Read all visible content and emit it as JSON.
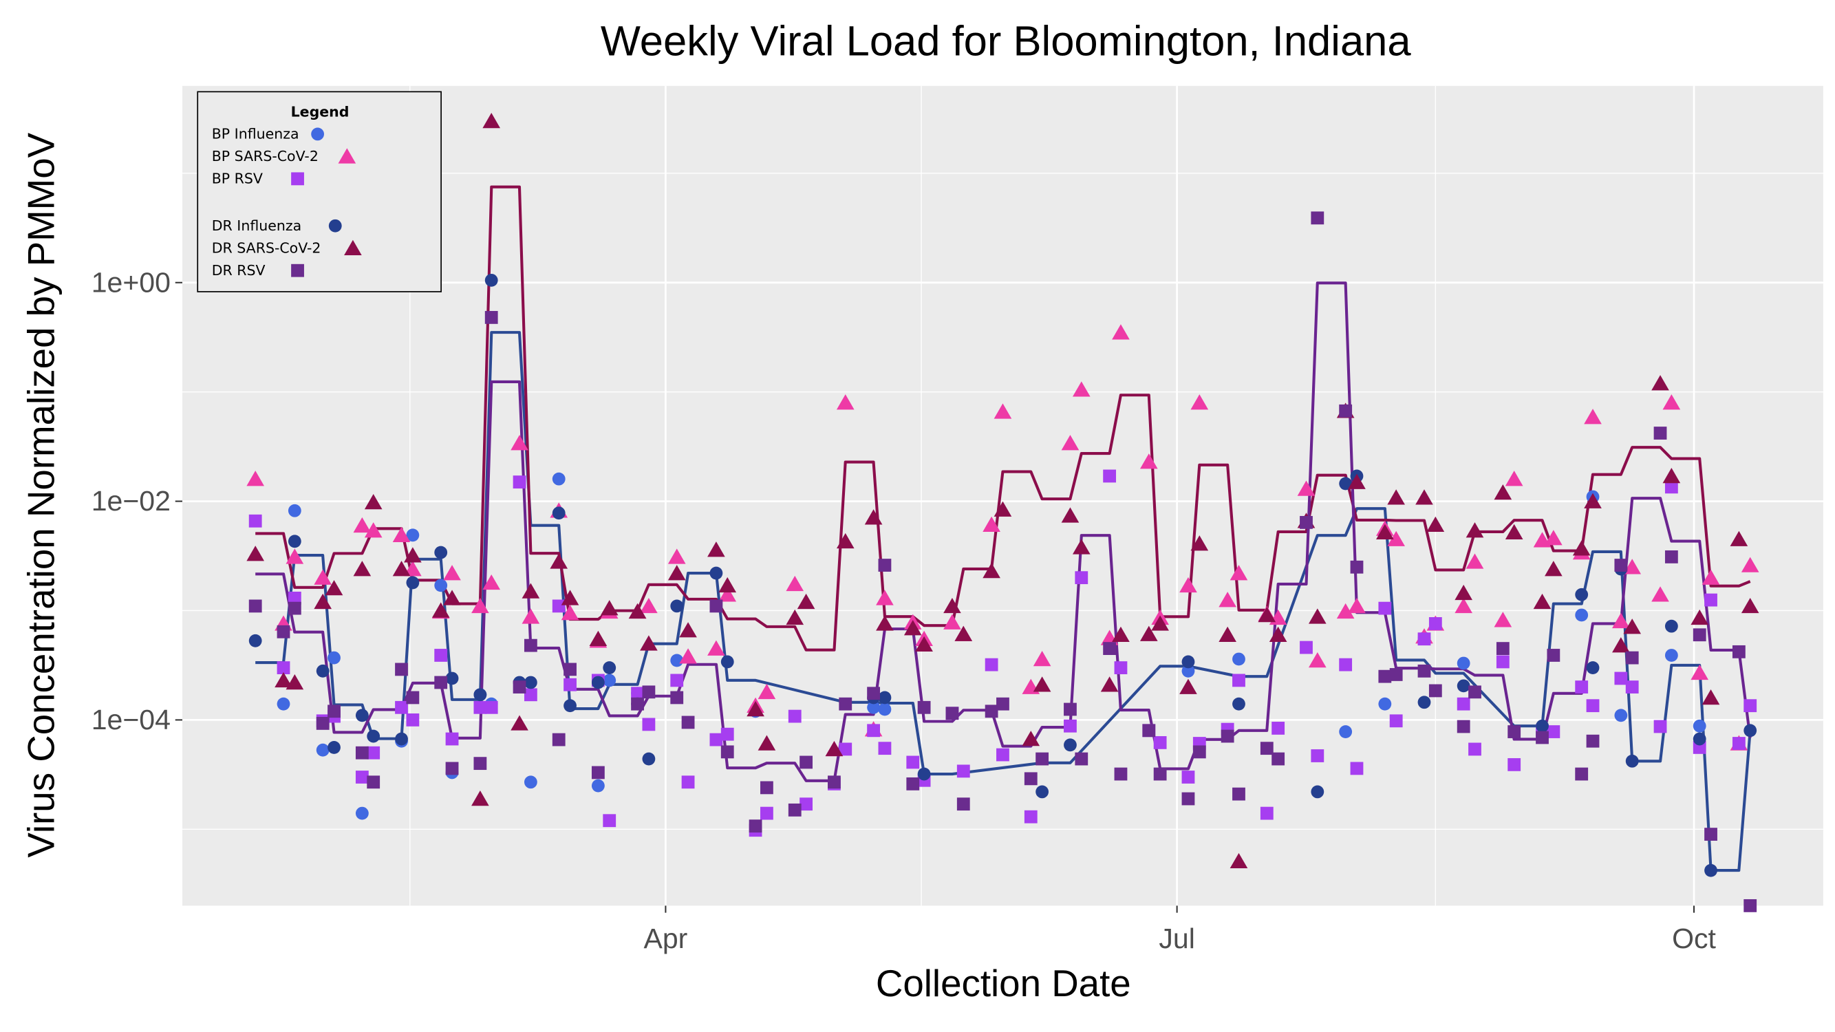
{
  "chart_data": {
    "type": "scatter",
    "title": "Weekly Viral Load for Bloomington, Indiana",
    "xlabel": "Collection Date",
    "ylabel": "Virus Concentration Normalized by PMMoV",
    "y_scale": "log10",
    "ylim": [
      2e-06,
      63
    ],
    "xlim": [
      "2022-01-05",
      "2022-10-24"
    ],
    "x_ticks": [
      {
        "date": "2022-04-01",
        "label": "Apr"
      },
      {
        "date": "2022-07-01",
        "label": "Jul"
      },
      {
        "date": "2022-10-01",
        "label": "Oct"
      }
    ],
    "y_ticks": [
      {
        "value": 1,
        "label": "1e+00"
      },
      {
        "value": 0.01,
        "label": "1e−02"
      },
      {
        "value": 0.0001,
        "label": "1e−04"
      }
    ],
    "grid": true,
    "background": "#ebebeb",
    "legend": {
      "title": "Legend",
      "placement": "top-left",
      "entries": [
        "BP Influenza",
        "BP SARS-CoV-2",
        "BP RSV",
        "DR Influenza",
        "DR SARS-CoV-2",
        "DR RSV"
      ]
    },
    "trend_lines": "weekly mean per pathogen",
    "dates": [
      "2022-01-18",
      "2022-01-23",
      "2022-01-25",
      "2022-01-30",
      "2022-02-01",
      "2022-02-06",
      "2022-02-08",
      "2022-02-13",
      "2022-02-15",
      "2022-02-20",
      "2022-02-22",
      "2022-02-27",
      "2022-03-01",
      "2022-03-06",
      "2022-03-08",
      "2022-03-13",
      "2022-03-15",
      "2022-03-20",
      "2022-03-22",
      "2022-03-27",
      "2022-03-29",
      "2022-04-03",
      "2022-04-05",
      "2022-04-10",
      "2022-04-12",
      "2022-04-17",
      "2022-04-19",
      "2022-04-24",
      "2022-04-26",
      "2022-05-01",
      "2022-05-03",
      "2022-05-08",
      "2022-05-10",
      "2022-05-15",
      "2022-05-17",
      "2022-05-22",
      "2022-05-24",
      "2022-05-29",
      "2022-05-31",
      "2022-06-05",
      "2022-06-07",
      "2022-06-12",
      "2022-06-14",
      "2022-06-19",
      "2022-06-21",
      "2022-06-26",
      "2022-06-28",
      "2022-07-03",
      "2022-07-05",
      "2022-07-10",
      "2022-07-12",
      "2022-07-17",
      "2022-07-19",
      "2022-07-24",
      "2022-07-26",
      "2022-07-31",
      "2022-08-02",
      "2022-08-07",
      "2022-08-09",
      "2022-08-14",
      "2022-08-16",
      "2022-08-21",
      "2022-08-23",
      "2022-08-28",
      "2022-08-30",
      "2022-09-04",
      "2022-09-06",
      "2022-09-11",
      "2022-09-13",
      "2022-09-18",
      "2022-09-20",
      "2022-09-25",
      "2022-09-27",
      "2022-10-02",
      "2022-10-04",
      "2022-10-09",
      "2022-10-11"
    ],
    "series": [
      {
        "name": "BP Influenza",
        "pathogen": "Influenza",
        "marker": "circle",
        "color": "#4169e1",
        "values": [
          null,
          0.00014,
          0.0082,
          5.3e-05,
          0.00037,
          1.4e-05,
          null,
          6.4e-05,
          0.0049,
          0.0017,
          3.3e-05,
          0.00017,
          0.00014,
          null,
          2.7e-05,
          0.016,
          null,
          2.5e-05,
          0.00023,
          0.000175,
          null,
          0.00035,
          null,
          null,
          null,
          0.00012,
          null,
          null,
          null,
          null,
          null,
          0.00013,
          0.000125,
          null,
          null,
          null,
          null,
          null,
          null,
          null,
          null,
          null,
          null,
          null,
          null,
          null,
          null,
          0.00028,
          null,
          null,
          0.00036,
          null,
          null,
          null,
          null,
          7.8e-05,
          null,
          0.00014,
          null,
          0.00056,
          null,
          0.00033,
          null,
          null,
          null,
          null,
          null,
          0.00091,
          0.011,
          0.00011,
          null,
          null,
          0.00039,
          8.8e-05,
          null,
          null,
          null
        ]
      },
      {
        "name": "BP SARS-CoV-2",
        "pathogen": "SARS-CoV-2",
        "marker": "triangle",
        "color": "#ee3aa6",
        "values": [
          0.016,
          0.00076,
          0.0031,
          0.002,
          null,
          0.006,
          0.0054,
          0.0049,
          0.0024,
          0.00098,
          0.0022,
          0.0011,
          0.0018,
          0.034,
          0.00088,
          0.0082,
          0.00095,
          0.00053,
          0.00098,
          0.00098,
          0.0011,
          0.0031,
          0.00038,
          0.00045,
          0.0014,
          0.000135,
          0.00018,
          0.00175,
          null,
          5.4e-05,
          0.08,
          8.2e-05,
          0.0013,
          0.00078,
          0.00055,
          0.00078,
          0.00061,
          0.0061,
          0.066,
          0.0002,
          0.00036,
          0.034,
          0.105,
          0.00056,
          0.35,
          0.023,
          0.00086,
          0.0017,
          0.08,
          0.00125,
          0.0022,
          0.00093,
          0.00086,
          0.013,
          0.00035,
          0.00098,
          0.0011,
          0.0056,
          0.0045,
          0.00058,
          0.00076,
          0.0011,
          0.0028,
          0.00082,
          0.016,
          0.0044,
          0.0046,
          0.0034,
          0.059,
          0.0008,
          0.0025,
          0.0014,
          0.08,
          0.00027,
          0.002,
          6.1e-05,
          0.0026
        ]
      },
      {
        "name": "BP RSV",
        "pathogen": "RSV",
        "marker": "square",
        "color": "#a63ef0",
        "values": [
          0.0066,
          0.0003,
          0.0013,
          9.8e-05,
          0.000108,
          3e-05,
          5e-05,
          0.00013,
          0.0001,
          0.00039,
          6.7e-05,
          0.00013,
          0.00013,
          0.015,
          0.00017,
          0.0011,
          0.00021,
          0.00023,
          1.2e-05,
          0.000175,
          9.1e-05,
          0.00023,
          2.7e-05,
          6.6e-05,
          7.4e-05,
          9.8e-06,
          1.4e-05,
          0.000108,
          1.7e-05,
          2.6e-05,
          5.4e-05,
          8e-05,
          5.5e-05,
          4.1e-05,
          2.8e-05,
          0.000115,
          3.4e-05,
          0.00032,
          4.8e-05,
          1.3e-05,
          null,
          8.8e-05,
          0.002,
          0.017,
          0.0003,
          8e-05,
          6.2e-05,
          3e-05,
          6.1e-05,
          8.2e-05,
          0.00023,
          1.4e-05,
          8.4e-05,
          0.00046,
          4.7e-05,
          0.00032,
          3.6e-05,
          0.00105,
          9.8e-05,
          0.00055,
          0.00076,
          0.00014,
          5.4e-05,
          0.00034,
          3.9e-05,
          8e-05,
          7.8e-05,
          0.0002,
          0.000135,
          0.00024,
          0.0002,
          8.7e-05,
          0.0135,
          5.6e-05,
          0.00125,
          6.1e-05,
          0.000135
        ]
      },
      {
        "name": "DR Influenza",
        "pathogen": "Influenza",
        "marker": "circle",
        "color": "#243f8f",
        "values": [
          0.00053,
          null,
          0.0043,
          0.00028,
          5.6e-05,
          0.00011,
          7.1e-05,
          6.7e-05,
          0.0018,
          0.0034,
          0.00024,
          0.00017,
          1.05,
          0.00022,
          0.00022,
          0.0078,
          0.000135,
          0.00022,
          0.0003,
          0.00014,
          4.4e-05,
          0.0011,
          null,
          0.0022,
          0.00034,
          null,
          null,
          null,
          null,
          null,
          null,
          0.00016,
          0.00016,
          null,
          3.2e-05,
          null,
          null,
          null,
          null,
          null,
          2.2e-05,
          5.9e-05,
          null,
          null,
          null,
          null,
          null,
          0.00034,
          null,
          null,
          0.00014,
          null,
          null,
          null,
          2.2e-05,
          0.0145,
          0.017,
          null,
          null,
          0.000145,
          null,
          0.000205,
          null,
          null,
          null,
          8.8e-05,
          null,
          0.0014,
          0.0003,
          0.0024,
          4.2e-05,
          null,
          0.00072,
          6.7e-05,
          4.2e-06,
          null,
          8e-05
        ]
      },
      {
        "name": "DR SARS-CoV-2",
        "pathogen": "SARS-CoV-2",
        "marker": "triangle",
        "color": "#8b0d4b",
        "values": [
          0.0033,
          0.00023,
          0.00022,
          0.0012,
          0.0016,
          0.0024,
          0.0098,
          0.0024,
          0.0032,
          0.001,
          0.0013,
          1.9e-05,
          30,
          9.3e-05,
          0.0015,
          0.0028,
          0.0013,
          0.00055,
          0.00105,
          0.00098,
          0.0005,
          0.0022,
          0.00066,
          0.0036,
          0.0017,
          0.000125,
          6.1e-05,
          0.00086,
          0.0012,
          5.4e-05,
          0.0043,
          0.0071,
          0.00076,
          0.00069,
          0.00049,
          0.0011,
          0.00061,
          0.0023,
          0.0084,
          6.7e-05,
          0.00021,
          0.0074,
          0.0038,
          0.00021,
          0.0006,
          0.00061,
          0.00076,
          0.0002,
          0.0041,
          0.0006,
          5.1e-06,
          0.00091,
          0.0006,
          0.0066,
          0.00088,
          0.067,
          0.015,
          0.0052,
          0.0108,
          0.0108,
          0.0061,
          0.00145,
          0.0054,
          0.012,
          0.0052,
          0.0012,
          0.0024,
          0.0037,
          0.01,
          0.00048,
          0.00071,
          0.12,
          0.017,
          0.00086,
          0.00016,
          0.0045,
          0.0011
        ]
      },
      {
        "name": "DR RSV",
        "pathogen": "RSV",
        "marker": "square",
        "color": "#6a2c8e",
        "values": [
          0.0011,
          0.00064,
          0.00105,
          9.3e-05,
          0.00012,
          5e-05,
          2.7e-05,
          0.00029,
          0.00016,
          0.00022,
          3.6e-05,
          4e-05,
          0.48,
          0.0002,
          0.00048,
          6.6e-05,
          0.00029,
          3.3e-05,
          null,
          0.00014,
          0.00018,
          0.00016,
          9.5e-05,
          0.0011,
          5.1e-05,
          1.07e-05,
          2.4e-05,
          1.5e-05,
          4.1e-05,
          2.7e-05,
          0.00014,
          0.000175,
          0.0026,
          2.6e-05,
          0.00013,
          0.000115,
          1.7e-05,
          0.00012,
          0.00014,
          2.9e-05,
          4.4e-05,
          0.000125,
          4.4e-05,
          0.00045,
          3.2e-05,
          8e-05,
          3.2e-05,
          1.9e-05,
          5.1e-05,
          7.1e-05,
          2.1e-05,
          5.5e-05,
          4.4e-05,
          0.0064,
          3.9,
          0.067,
          0.0025,
          0.00025,
          0.00026,
          0.00028,
          0.000185,
          8.7e-05,
          0.00018,
          0.00045,
          7.8e-05,
          6.9e-05,
          0.00039,
          3.2e-05,
          6.4e-05,
          0.0026,
          0.00037,
          0.042,
          0.0031,
          0.0006,
          9e-06,
          0.00042,
          2e-06
        ]
      }
    ],
    "line_colors": {
      "Influenza": "#2b4a94",
      "SARS-CoV-2": "#8b0d4b",
      "RSV": "#6a2490"
    }
  }
}
